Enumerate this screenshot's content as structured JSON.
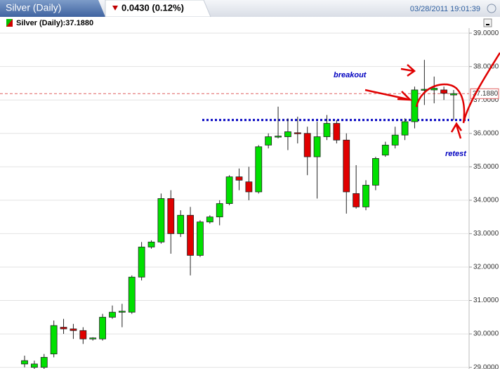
{
  "chart_data": {
    "type": "candlestick",
    "title": "Silver (Daily)",
    "change": "0.0430 (0.12%)",
    "datetime": "03/28/2011 19:01:39",
    "legend": "Silver (Daily):37.1880",
    "last_price": {
      "value": 37.188,
      "label": "37.1880"
    },
    "support_line": 36.4,
    "annotations": [
      "breakout",
      "retest"
    ],
    "up_color": "#00e000",
    "down_color": "#e00000",
    "ylim": [
      28.95,
      39.15
    ],
    "yticks": [
      {
        "value": 29,
        "label": "29.0000"
      },
      {
        "value": 30,
        "label": "30.0000"
      },
      {
        "value": 31,
        "label": "31.0000"
      },
      {
        "value": 32,
        "label": "32.0000"
      },
      {
        "value": 33,
        "label": "33.0000"
      },
      {
        "value": 34,
        "label": "34.0000"
      },
      {
        "value": 35,
        "label": "35.0000"
      },
      {
        "value": 36,
        "label": "36.0000"
      },
      {
        "value": 37,
        "label": "37.0000"
      },
      {
        "value": 38,
        "label": "38.0000"
      },
      {
        "value": 39,
        "label": "39.0000"
      }
    ],
    "grid": true,
    "open": [
      29.1,
      29.0,
      29.0,
      29.4,
      30.2,
      30.15,
      30.1,
      29.85,
      29.85,
      30.5,
      30.65,
      30.65,
      31.7,
      32.6,
      32.75,
      34.05,
      33.0,
      33.55,
      32.35,
      33.35,
      33.5,
      33.9,
      34.7,
      34.55,
      34.25,
      35.65,
      35.9,
      35.9,
      36.02,
      36.0,
      35.3,
      35.9,
      36.3,
      35.8,
      34.2,
      33.8,
      34.45,
      35.35,
      35.65,
      35.95,
      36.35,
      37.3,
      37.3,
      37.3,
      37.15
    ],
    "high": [
      29.35,
      29.2,
      29.4,
      30.4,
      30.45,
      30.3,
      30.2,
      29.9,
      30.6,
      30.85,
      30.9,
      31.75,
      32.75,
      32.8,
      34.2,
      34.3,
      33.7,
      33.8,
      33.4,
      33.55,
      34.0,
      34.75,
      34.95,
      35.0,
      35.65,
      36.0,
      36.8,
      36.45,
      36.5,
      36.2,
      36.35,
      36.55,
      36.4,
      36.0,
      35.05,
      34.6,
      35.3,
      35.75,
      36.2,
      36.45,
      37.4,
      38.2,
      37.7,
      37.4,
      37.3
    ],
    "low": [
      29.0,
      28.9,
      28.9,
      29.3,
      30.0,
      29.85,
      29.7,
      29.8,
      29.8,
      30.45,
      30.2,
      30.6,
      31.6,
      32.55,
      32.7,
      32.4,
      32.9,
      31.75,
      32.3,
      33.3,
      33.25,
      33.85,
      34.3,
      34.0,
      34.2,
      35.55,
      35.85,
      35.5,
      35.7,
      34.75,
      34.05,
      35.8,
      35.7,
      33.6,
      33.75,
      33.7,
      34.3,
      35.3,
      35.55,
      35.8,
      36.15,
      36.85,
      36.9,
      37.0,
      36.4
    ],
    "close": [
      29.2,
      29.1,
      29.3,
      30.25,
      30.15,
      30.1,
      29.85,
      29.88,
      30.5,
      30.65,
      30.68,
      31.7,
      32.6,
      32.75,
      34.05,
      33.0,
      33.55,
      32.35,
      33.35,
      33.5,
      33.9,
      34.7,
      34.6,
      34.25,
      35.6,
      35.9,
      35.92,
      36.05,
      36.0,
      35.3,
      35.9,
      36.3,
      35.8,
      34.25,
      33.8,
      34.45,
      35.25,
      35.65,
      35.95,
      36.35,
      37.3,
      37.32,
      37.35,
      37.2,
      37.19
    ]
  }
}
